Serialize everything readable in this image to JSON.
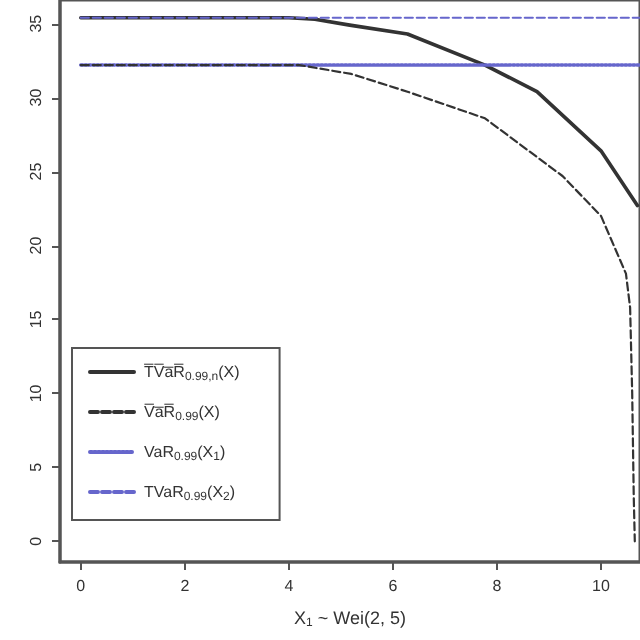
{
  "chart_data": {
    "type": "line",
    "xlabel": "X$_{1}$ ~ Wei(2, 5)",
    "xlim": [
      -0.4,
      10.75
    ],
    "xticks": [
      0,
      2,
      4,
      6,
      8,
      10
    ],
    "ylim": [
      -1.4,
      36.6
    ],
    "yticks": [
      0,
      5,
      10,
      15,
      20,
      25,
      30,
      35
    ],
    "grid": false,
    "legend": "bottom left",
    "marker": "none",
    "series": [
      {
        "name": "T̅V̅a̅R̅$_{0.99,n}$(X)",
        "color": "#333333",
        "line_style": "solid",
        "x": [
          0,
          2,
          4,
          4.5,
          5.17,
          6.28,
          7.77,
          8.77,
          10,
          10.7
        ],
        "values": [
          35.4,
          35.4,
          35.4,
          35.3,
          34.9,
          34.3,
          32.2,
          30.4,
          26.4,
          22.7
        ]
      },
      {
        "name": "V̅a̅R̅$_{0.99}$(X)",
        "color": "#333333",
        "line_style": "dashed",
        "x": [
          0,
          2,
          4.2,
          5.2,
          6.28,
          7.77,
          9.26,
          10,
          10.48,
          10.56,
          10.6,
          10.63,
          10.65
        ],
        "values": [
          32.2,
          32.2,
          32.2,
          31.6,
          30.4,
          28.6,
          24.7,
          22,
          18.1,
          15.8,
          10,
          3,
          0
        ]
      },
      {
        "name": "VaR$_{0.99}$(X$_{1}$)",
        "color": "#6666cc",
        "line_style": "dotted",
        "x": [
          0,
          10.75
        ],
        "values": [
          32.2,
          32.2
        ]
      },
      {
        "name": "TVaR$_{0.99}$(X$_{2}$)",
        "color": "#6666cc",
        "line_style": "dashed",
        "x": [
          0,
          10.75
        ],
        "values": [
          35.4,
          35.4
        ]
      }
    ]
  }
}
